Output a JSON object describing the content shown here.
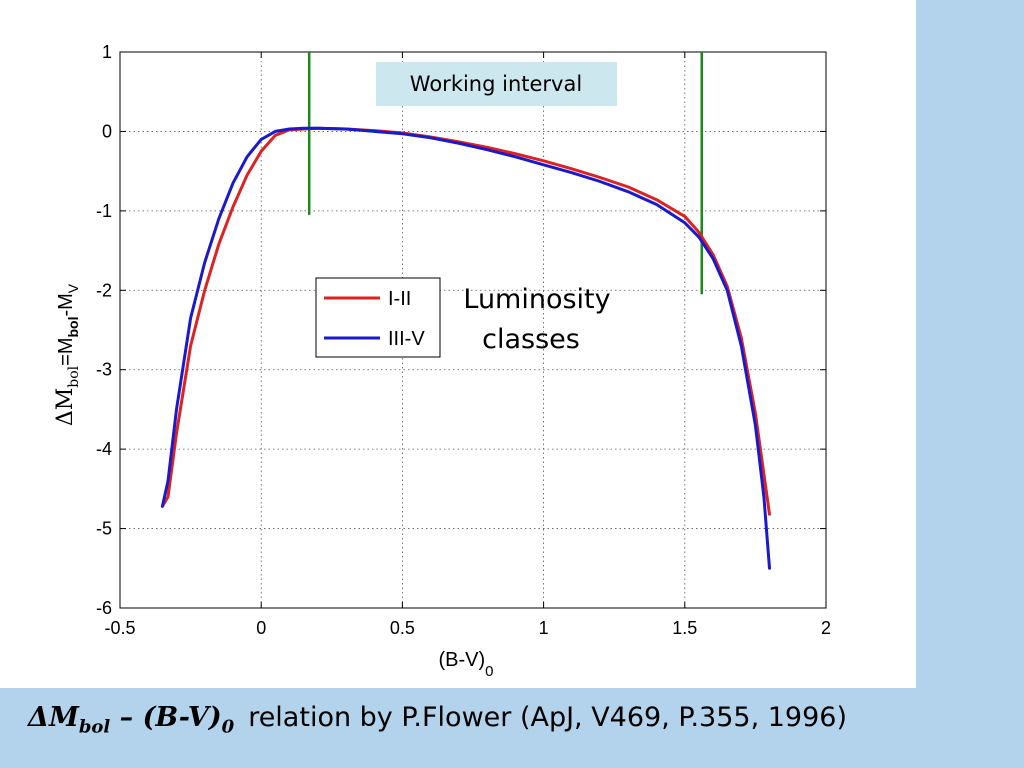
{
  "caption": {
    "math_delta_m": "ΔM",
    "math_delta_m_sub": "bol",
    "math_minus": " – ",
    "math_bv": "(B-V)",
    "math_bv_sub": "0",
    "relation_text": "relation by P.Flower (ApJ, V469, P.355, 1996)"
  },
  "chart_data": {
    "type": "line",
    "xlabel_main": "(B-V)",
    "xlabel_sub": "0",
    "ylabel_delta": "ΔM",
    "ylabel_delta_sub": "bol",
    "ylabel_eq": "=M",
    "ylabel_eq_sub": "bol",
    "ylabel_tail": "-M",
    "ylabel_tail_sub": "V",
    "xlim": [
      -0.5,
      2
    ],
    "ylim": [
      -6,
      1
    ],
    "xticks": [
      "-0.5",
      "0",
      "0.5",
      "1",
      "1.5",
      "2"
    ],
    "yticks": [
      "1",
      "0",
      "-1",
      "-2",
      "-3",
      "-4",
      "-5",
      "-6"
    ],
    "grid": true,
    "legend_position": "center-left",
    "annotations": {
      "working_interval_label": "Working interval",
      "working_interval_bounds": [
        0.17,
        1.56
      ],
      "working_interval_line_bottoms": [
        -1.05,
        -2.05
      ],
      "luminosity_line1": "Luminosity",
      "luminosity_line2": "classes"
    },
    "colors": {
      "line_I_II": "#dd2222",
      "line_III_V": "#1a1acc",
      "interval_lines": "#1a8a1a",
      "label_box": "#cce8ee",
      "background": "#b3d3ec"
    },
    "series": [
      {
        "name": "I-II",
        "x": [
          -0.35,
          -0.33,
          -0.3,
          -0.25,
          -0.2,
          -0.15,
          -0.1,
          -0.05,
          0.0,
          0.05,
          0.1,
          0.15,
          0.2,
          0.3,
          0.4,
          0.5,
          0.6,
          0.7,
          0.8,
          0.9,
          1.0,
          1.1,
          1.2,
          1.3,
          1.4,
          1.5,
          1.55,
          1.6,
          1.65,
          1.7,
          1.75,
          1.8
        ],
        "y": [
          -4.72,
          -4.6,
          -3.8,
          -2.7,
          -2.0,
          -1.42,
          -0.95,
          -0.55,
          -0.25,
          -0.05,
          0.02,
          0.03,
          0.04,
          0.03,
          0.01,
          -0.02,
          -0.07,
          -0.13,
          -0.2,
          -0.28,
          -0.37,
          -0.47,
          -0.58,
          -0.7,
          -0.86,
          -1.07,
          -1.27,
          -1.55,
          -1.95,
          -2.6,
          -3.55,
          -4.82
        ]
      },
      {
        "name": "III-V",
        "x": [
          -0.35,
          -0.33,
          -0.3,
          -0.25,
          -0.2,
          -0.15,
          -0.1,
          -0.05,
          0.0,
          0.05,
          0.1,
          0.15,
          0.2,
          0.3,
          0.4,
          0.5,
          0.6,
          0.7,
          0.8,
          0.9,
          1.0,
          1.1,
          1.2,
          1.3,
          1.4,
          1.5,
          1.55,
          1.6,
          1.65,
          1.7,
          1.75,
          1.78,
          1.8
        ],
        "y": [
          -4.72,
          -4.4,
          -3.5,
          -2.35,
          -1.65,
          -1.1,
          -0.65,
          -0.32,
          -0.1,
          0.0,
          0.03,
          0.04,
          0.04,
          0.03,
          0.0,
          -0.03,
          -0.08,
          -0.15,
          -0.23,
          -0.32,
          -0.42,
          -0.52,
          -0.63,
          -0.76,
          -0.92,
          -1.15,
          -1.33,
          -1.6,
          -2.0,
          -2.7,
          -3.7,
          -4.6,
          -5.5
        ]
      }
    ]
  }
}
